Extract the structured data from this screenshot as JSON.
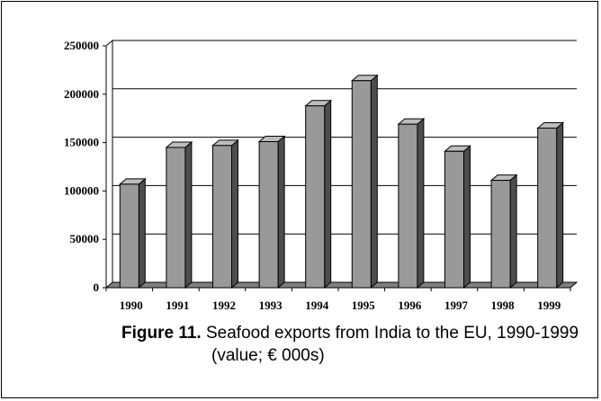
{
  "chart_data": {
    "type": "bar",
    "categories": [
      "1990",
      "1991",
      "1992",
      "1993",
      "1994",
      "1995",
      "1996",
      "1997",
      "1998",
      "1999"
    ],
    "values": [
      107000,
      145000,
      147000,
      151000,
      188000,
      214000,
      169000,
      141000,
      111000,
      165000
    ],
    "ylim": [
      0,
      250000
    ],
    "yticks": [
      "0",
      "50000",
      "100000",
      "150000",
      "200000",
      "250000"
    ],
    "grid": true,
    "legend": "none",
    "bar_color": "#999999",
    "bar_dark_color": "#4d4d4d",
    "bar_top_color": "#bdbdbd"
  },
  "caption": {
    "label": "Figure 11.",
    "line1": "Seafood exports from India to the EU, 1990-1999",
    "line2": "(value; € 000s)"
  }
}
